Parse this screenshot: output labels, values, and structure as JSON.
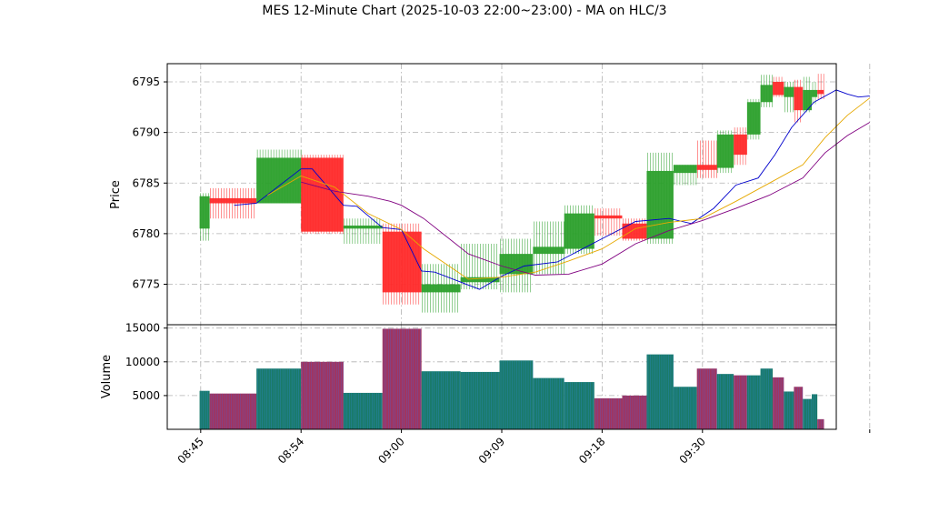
{
  "chart_data": {
    "type": "candlestick",
    "title": "MES 12-Minute Chart (2025-10-03 22:00~23:00) - MA on HLC/3",
    "price_panel": {
      "ylabel": "Price",
      "yticks": [
        6775,
        6780,
        6785,
        6790,
        6795
      ],
      "ylim": [
        6771.0,
        6796.8
      ]
    },
    "volume_panel": {
      "ylabel": "Volume",
      "yticks": [
        5000,
        10000,
        15000
      ],
      "ylim": [
        0,
        15500
      ]
    },
    "x_tick_labels": [
      "08:45",
      "08:54",
      "09:00",
      "09:09",
      "09:18",
      "09:30"
    ],
    "x_tick_positions": [
      0,
      9,
      18,
      27,
      36,
      45
    ],
    "xlim": [
      -3,
      57
    ],
    "grid": true,
    "up_color": "#2ca02c",
    "down_color": "#ff2a2a",
    "volume_up_color": "#1a7a6a",
    "volume_down_color": "#a03560",
    "ma_colors": [
      "#0000cc",
      "#e6a800",
      "#800080"
    ],
    "candles": [
      {
        "x0": -0.1,
        "x1": 0.8,
        "o": 6780.5,
        "h": 6784.0,
        "l": 6779.3,
        "c": 6783.7,
        "v": 5700
      },
      {
        "x0": 0.8,
        "x1": 5.0,
        "o": 6783.5,
        "h": 6784.5,
        "l": 6781.5,
        "c": 6783.0,
        "v": 5300
      },
      {
        "x0": 5.0,
        "x1": 9.0,
        "o": 6783.0,
        "h": 6788.3,
        "l": 6783.0,
        "c": 6787.5,
        "v": 9000
      },
      {
        "x0": 9.0,
        "x1": 12.8,
        "o": 6787.5,
        "h": 6787.8,
        "l": 6780.0,
        "c": 6780.2,
        "v": 10000
      },
      {
        "x0": 12.8,
        "x1": 16.3,
        "o": 6780.5,
        "h": 6781.5,
        "l": 6779.0,
        "c": 6780.8,
        "v": 5400
      },
      {
        "x0": 16.3,
        "x1": 19.8,
        "o": 6780.2,
        "h": 6781.0,
        "l": 6773.0,
        "c": 6774.2,
        "v": 14900
      },
      {
        "x0": 19.8,
        "x1": 23.3,
        "o": 6774.2,
        "h": 6777.0,
        "l": 6772.2,
        "c": 6775.0,
        "v": 8600
      },
      {
        "x0": 23.3,
        "x1": 26.8,
        "o": 6775.2,
        "h": 6779.0,
        "l": 6774.5,
        "c": 6775.7,
        "v": 8500
      },
      {
        "x0": 26.8,
        "x1": 29.8,
        "o": 6776.0,
        "h": 6779.5,
        "l": 6774.2,
        "c": 6778.0,
        "v": 10200
      },
      {
        "x0": 29.8,
        "x1": 32.6,
        "o": 6778.0,
        "h": 6781.2,
        "l": 6776.0,
        "c": 6778.7,
        "v": 7600
      },
      {
        "x0": 32.6,
        "x1": 35.3,
        "o": 6778.5,
        "h": 6782.8,
        "l": 6778.0,
        "c": 6782.0,
        "v": 7000
      },
      {
        "x0": 35.3,
        "x1": 37.8,
        "o": 6781.8,
        "h": 6782.5,
        "l": 6779.8,
        "c": 6781.5,
        "v": 4600
      },
      {
        "x0": 37.8,
        "x1": 40.0,
        "o": 6781.0,
        "h": 6781.5,
        "l": 6779.3,
        "c": 6779.5,
        "v": 5000
      },
      {
        "x0": 40.0,
        "x1": 42.4,
        "o": 6779.5,
        "h": 6788.0,
        "l": 6779.0,
        "c": 6786.2,
        "v": 11100
      },
      {
        "x0": 42.4,
        "x1": 44.5,
        "o": 6786.0,
        "h": 6786.8,
        "l": 6784.8,
        "c": 6786.8,
        "v": 6300
      },
      {
        "x0": 44.5,
        "x1": 46.3,
        "o": 6786.8,
        "h": 6789.2,
        "l": 6785.5,
        "c": 6786.3,
        "v": 9000
      },
      {
        "x0": 46.3,
        "x1": 47.8,
        "o": 6786.5,
        "h": 6790.2,
        "l": 6786.0,
        "c": 6789.8,
        "v": 8200
      },
      {
        "x0": 47.8,
        "x1": 49.0,
        "o": 6789.8,
        "h": 6790.5,
        "l": 6786.8,
        "c": 6787.8,
        "v": 8000
      },
      {
        "x0": 49.0,
        "x1": 50.2,
        "o": 6789.8,
        "h": 6793.3,
        "l": 6789.3,
        "c": 6793.0,
        "v": 8000
      },
      {
        "x0": 50.2,
        "x1": 51.3,
        "o": 6793.0,
        "h": 6795.7,
        "l": 6792.5,
        "c": 6794.7,
        "v": 9000
      },
      {
        "x0": 51.3,
        "x1": 52.3,
        "o": 6795.0,
        "h": 6795.5,
        "l": 6793.5,
        "c": 6793.7,
        "v": 7700
      },
      {
        "x0": 52.3,
        "x1": 53.2,
        "o": 6793.5,
        "h": 6795.0,
        "l": 6792.0,
        "c": 6794.5,
        "v": 5600
      },
      {
        "x0": 53.2,
        "x1": 54.0,
        "o": 6794.5,
        "h": 6795.2,
        "l": 6791.0,
        "c": 6792.2,
        "v": 6300
      },
      {
        "x0": 54.0,
        "x1": 54.8,
        "o": 6792.2,
        "h": 6795.5,
        "l": 6792.0,
        "c": 6794.2,
        "v": 4500
      },
      {
        "x0": 54.8,
        "x1": 55.3,
        "o": 6793.5,
        "h": 6795.0,
        "l": 6792.8,
        "c": 6794.2,
        "v": 5200
      },
      {
        "x0": 55.3,
        "x1": 55.9,
        "o": 6794.2,
        "h": 6795.8,
        "l": 6793.3,
        "c": 6793.8,
        "v": 1500
      }
    ],
    "ma_fast": [
      [
        3,
        6782.8
      ],
      [
        5,
        6783.0
      ],
      [
        9,
        6786.4
      ],
      [
        10,
        6786.4
      ],
      [
        12.8,
        6782.8
      ],
      [
        14,
        6782.7
      ],
      [
        16.3,
        6780.6
      ],
      [
        18,
        6780.4
      ],
      [
        19.8,
        6776.3
      ],
      [
        21,
        6776.2
      ],
      [
        25,
        6774.5
      ],
      [
        27,
        6775.8
      ],
      [
        29,
        6776.8
      ],
      [
        32,
        6777.2
      ],
      [
        36,
        6779.5
      ],
      [
        39,
        6781.2
      ],
      [
        42,
        6781.5
      ],
      [
        44,
        6781.0
      ],
      [
        46,
        6782.5
      ],
      [
        48,
        6784.8
      ],
      [
        50,
        6785.5
      ],
      [
        51.5,
        6787.8
      ],
      [
        53,
        6790.5
      ],
      [
        55,
        6793.0
      ],
      [
        57,
        6794.2
      ],
      [
        58,
        6793.8
      ],
      [
        59,
        6793.5
      ],
      [
        60,
        6793.6
      ]
    ],
    "ma_mid": [
      [
        6,
        6783.8
      ],
      [
        9,
        6785.7
      ],
      [
        12,
        6784.6
      ],
      [
        15,
        6782.0
      ],
      [
        18,
        6780.4
      ],
      [
        20,
        6778.5
      ],
      [
        24,
        6775.5
      ],
      [
        27,
        6775.7
      ],
      [
        30,
        6776.2
      ],
      [
        33,
        6777.3
      ],
      [
        36,
        6778.5
      ],
      [
        39,
        6780.5
      ],
      [
        42,
        6781.1
      ],
      [
        45,
        6781.5
      ],
      [
        48,
        6783.2
      ],
      [
        51,
        6785.0
      ],
      [
        54,
        6786.8
      ],
      [
        56,
        6789.5
      ],
      [
        58,
        6791.7
      ],
      [
        60,
        6793.4
      ]
    ],
    "ma_slow": [
      [
        9,
        6785.1
      ],
      [
        12,
        6784.2
      ],
      [
        15,
        6783.7
      ],
      [
        17,
        6783.2
      ],
      [
        18,
        6782.8
      ],
      [
        20,
        6781.5
      ],
      [
        24,
        6778.0
      ],
      [
        27,
        6776.8
      ],
      [
        30,
        6775.9
      ],
      [
        33,
        6776.0
      ],
      [
        36,
        6777.0
      ],
      [
        39,
        6779.0
      ],
      [
        42,
        6780.3
      ],
      [
        45,
        6781.3
      ],
      [
        48,
        6782.5
      ],
      [
        51,
        6783.8
      ],
      [
        54,
        6785.5
      ],
      [
        56,
        6788.0
      ],
      [
        58,
        6789.7
      ],
      [
        60,
        6791.0
      ]
    ]
  }
}
